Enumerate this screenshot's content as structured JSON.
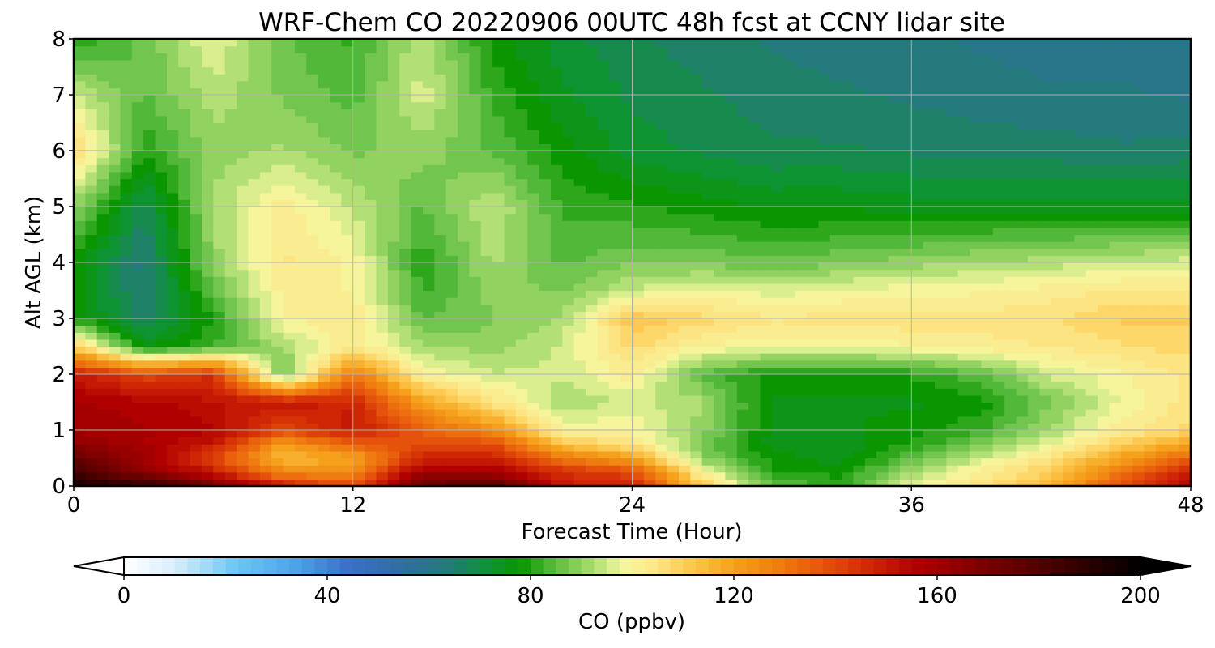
{
  "chart_data": {
    "type": "heatmap",
    "title": "WRF-Chem CO  20220906 00UTC 48h fcst at CCNY lidar site",
    "xlabel": "Forecast Time (Hour)",
    "ylabel": "Alt AGL (km)",
    "xlim": [
      0,
      48
    ],
    "ylim": [
      0,
      8
    ],
    "xticks": [
      0,
      12,
      24,
      36,
      48
    ],
    "xtick_labels": [
      "0",
      "12",
      "24",
      "36",
      "48"
    ],
    "yticks": [
      0,
      1,
      2,
      3,
      4,
      5,
      6,
      7,
      8
    ],
    "ytick_labels": [
      "0",
      "1",
      "2",
      "3",
      "4",
      "5",
      "6",
      "7",
      "8"
    ],
    "grid": true,
    "colorbar": {
      "label": "CO  (ppbv)",
      "range": [
        0,
        200
      ],
      "ticks": [
        0,
        40,
        80,
        120,
        160,
        200
      ],
      "tick_labels": [
        "0",
        "40",
        "80",
        "120",
        "160",
        "200"
      ],
      "extend": "both",
      "orientation": "horizontal"
    },
    "x": [
      0,
      3,
      6,
      9,
      12,
      15,
      18,
      21,
      24,
      27,
      30,
      33,
      36,
      39,
      42,
      45,
      48
    ],
    "y": [
      0,
      0.25,
      0.5,
      0.75,
      1,
      1.5,
      2,
      2.5,
      3,
      3.5,
      4,
      5,
      6,
      7,
      8
    ],
    "z": [
      [
        195,
        190,
        170,
        150,
        140,
        175,
        180,
        150,
        148,
        112,
        85,
        82,
        98,
        105,
        115,
        140,
        155
      ],
      [
        185,
        165,
        150,
        125,
        125,
        160,
        160,
        145,
        140,
        100,
        80,
        78,
        92,
        102,
        110,
        130,
        150
      ],
      [
        175,
        160,
        140,
        115,
        118,
        148,
        148,
        130,
        120,
        90,
        78,
        75,
        85,
        95,
        105,
        120,
        135
      ],
      [
        165,
        158,
        150,
        120,
        135,
        140,
        140,
        112,
        105,
        88,
        75,
        74,
        80,
        88,
        98,
        110,
        120
      ],
      [
        160,
        158,
        155,
        140,
        150,
        135,
        125,
        100,
        100,
        90,
        76,
        76,
        78,
        82,
        92,
        102,
        108
      ],
      [
        158,
        156,
        152,
        150,
        148,
        120,
        105,
        92,
        95,
        92,
        76,
        76,
        76,
        78,
        88,
        98,
        105
      ],
      [
        150,
        140,
        145,
        85,
        130,
        100,
        95,
        95,
        102,
        85,
        78,
        78,
        80,
        85,
        95,
        100,
        104
      ],
      [
        110,
        76,
        82,
        92,
        103,
        92,
        90,
        95,
        108,
        100,
        99,
        98,
        100,
        102,
        104,
        106,
        108
      ],
      [
        80,
        66,
        80,
        100,
        104,
        85,
        88,
        92,
        112,
        108,
        104,
        105,
        106,
        105,
        106,
        110,
        110
      ],
      [
        78,
        64,
        85,
        102,
        100,
        82,
        90,
        88,
        95,
        98,
        96,
        98,
        99,
        100,
        102,
        104,
        104
      ],
      [
        78,
        63,
        90,
        104,
        100,
        80,
        92,
        85,
        88,
        88,
        86,
        88,
        90,
        92,
        93,
        95,
        96
      ],
      [
        90,
        68,
        92,
        102,
        94,
        85,
        95,
        82,
        80,
        78,
        76,
        76,
        75,
        75,
        75,
        75,
        75
      ],
      [
        108,
        80,
        90,
        92,
        88,
        90,
        85,
        78,
        72,
        70,
        68,
        68,
        67,
        66,
        66,
        65,
        66
      ],
      [
        95,
        85,
        93,
        88,
        84,
        96,
        82,
        74,
        70,
        68,
        66,
        65,
        64,
        63,
        62,
        62,
        61
      ],
      [
        80,
        86,
        98,
        86,
        82,
        94,
        78,
        72,
        68,
        66,
        64,
        63,
        62,
        61,
        60,
        60,
        59
      ]
    ]
  }
}
